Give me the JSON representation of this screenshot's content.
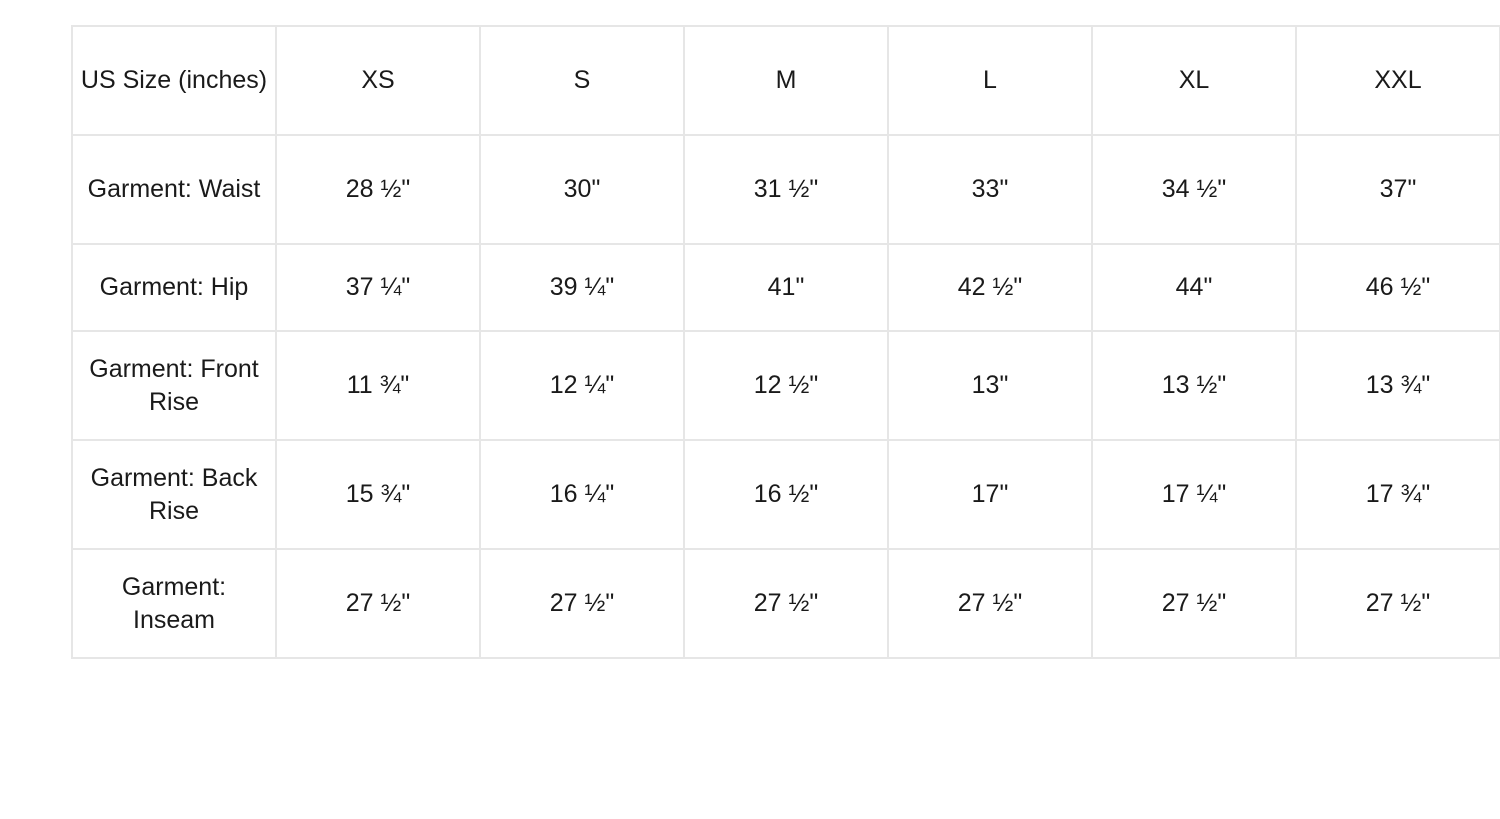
{
  "table": {
    "header": [
      "US Size (inches)",
      "XS",
      "S",
      "M",
      "L",
      "XL",
      "XXL"
    ],
    "rows": [
      [
        "Garment: Waist",
        "28 ½\"",
        "30\"",
        "31 ½\"",
        "33\"",
        "34 ½\"",
        "37\""
      ],
      [
        "Garment: Hip",
        "37 ¼\"",
        "39 ¼\"",
        "41\"",
        "42 ½\"",
        "44\"",
        "46 ½\""
      ],
      [
        "Garment: Front Rise",
        "11 ¾\"",
        "12 ¼\"",
        "12 ½\"",
        "13\"",
        "13 ½\"",
        "13 ¾\""
      ],
      [
        "Garment: Back Rise",
        "15 ¾\"",
        "16 ¼\"",
        "16 ½\"",
        "17\"",
        "17 ¼\"",
        "17 ¾\""
      ],
      [
        "Garment: Inseam",
        "27 ½\"",
        "27 ½\"",
        "27 ½\"",
        "27 ½\"",
        "27 ½\"",
        "27 ½\""
      ]
    ]
  }
}
